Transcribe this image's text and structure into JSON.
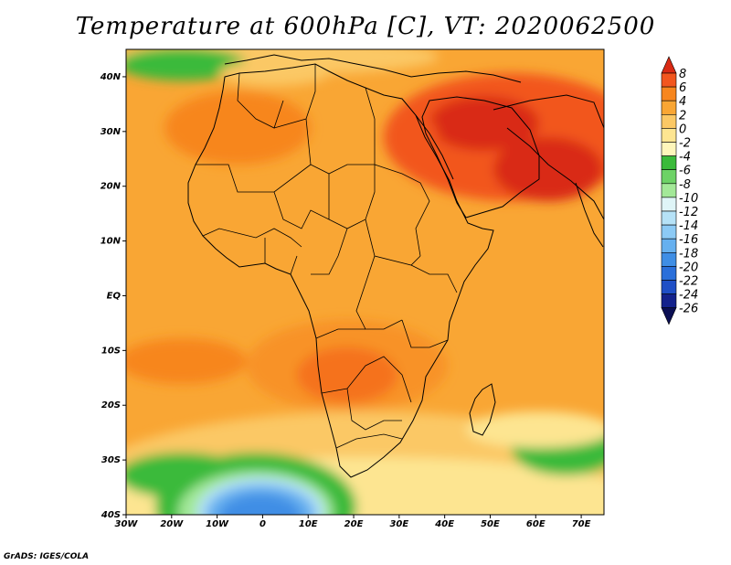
{
  "title": "Temperature at 600hPa [C], VT: 2020062500",
  "credit": "GrADS: IGES/COLA",
  "map": {
    "lon_labels": [
      "30W",
      "20W",
      "10W",
      "0",
      "10E",
      "20E",
      "30E",
      "40E",
      "50E",
      "60E",
      "70E"
    ],
    "lat_labels": [
      "40N",
      "30N",
      "20N",
      "10N",
      "EQ",
      "10S",
      "20S",
      "30S",
      "40S"
    ]
  },
  "colorbar": {
    "levels": [
      "8",
      "6",
      "4",
      "2",
      "0",
      "-2",
      "-4",
      "-6",
      "-8",
      "-10",
      "-12",
      "-14",
      "-16",
      "-18",
      "-20",
      "-22",
      "-24",
      "-26"
    ],
    "colors": [
      "#d92a14",
      "#f2561e",
      "#f7861e",
      "#f9a634",
      "#fbc865",
      "#fde591",
      "#fef6bb",
      "#3aba3a",
      "#6dd266",
      "#a3e898",
      "#dff5f7",
      "#b6e2f7",
      "#8ccaf5",
      "#66b0ef",
      "#3f8ee5",
      "#2a6fda",
      "#1f4fc6",
      "#14228c",
      "#0b0f53"
    ]
  }
}
